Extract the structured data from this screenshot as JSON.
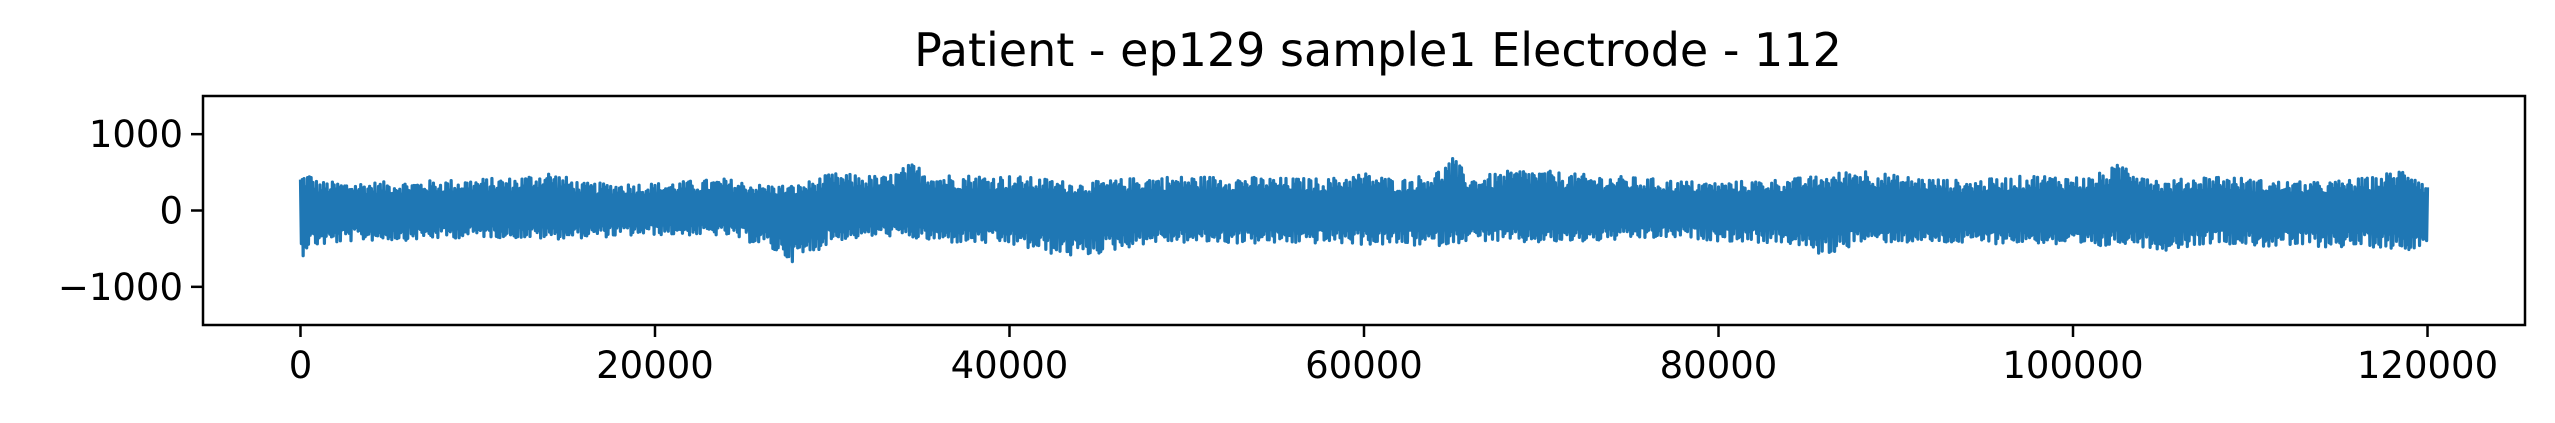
{
  "chart_data": {
    "type": "line",
    "title": "Patient - ep129 sample1 Electrode - 112",
    "xlabel": "",
    "ylabel": "",
    "xlim": [
      -5500,
      125500
    ],
    "ylim": [
      -1500,
      1500
    ],
    "x_ticks": [
      0,
      20000,
      40000,
      60000,
      80000,
      100000,
      120000
    ],
    "x_tick_labels": [
      "0",
      "20000",
      "40000",
      "60000",
      "80000",
      "100000",
      "120000"
    ],
    "y_ticks": [
      1000,
      0,
      -1000
    ],
    "y_tick_labels": [
      "1000",
      "0",
      "−1000"
    ],
    "grid": false,
    "legend": "none",
    "series": [
      {
        "color": "#1f77b4",
        "x_range": [
          0,
          120000
        ],
        "n_samples": 120000,
        "envelope": {
          "x": [
            0,
            500,
            1000,
            3000,
            6000,
            10000,
            12000,
            14000,
            16000,
            20000,
            24000,
            26000,
            28000,
            30000,
            33000,
            34500,
            36000,
            40000,
            42000,
            44000,
            48000,
            52000,
            55000,
            58000,
            60000,
            62000,
            64000,
            65000,
            66000,
            69000,
            72000,
            75000,
            78000,
            80000,
            84000,
            86000,
            88000,
            90000,
            94000,
            98000,
            101000,
            103000,
            105000,
            108000,
            111000,
            114000,
            117000,
            119000,
            120000
          ],
          "upper": [
            480,
            500,
            380,
            370,
            380,
            420,
            430,
            520,
            360,
            360,
            420,
            340,
            330,
            490,
            450,
            620,
            480,
            460,
            420,
            360,
            450,
            450,
            430,
            420,
            500,
            400,
            500,
            700,
            430,
            550,
            480,
            440,
            390,
            370,
            420,
            460,
            560,
            460,
            390,
            470,
            440,
            650,
            380,
            470,
            390,
            370,
            440,
            590,
            330
          ],
          "lower": [
            -650,
            -460,
            -470,
            -400,
            -390,
            -350,
            -360,
            -380,
            -360,
            -320,
            -330,
            -460,
            -700,
            -400,
            -330,
            -370,
            -420,
            -450,
            -560,
            -620,
            -420,
            -430,
            -440,
            -430,
            -450,
            -460,
            -470,
            -440,
            -390,
            -430,
            -420,
            -380,
            -360,
            -400,
            -440,
            -600,
            -420,
            -420,
            -440,
            -430,
            -520,
            -430,
            -530,
            -420,
            -480,
            -480,
            -480,
            -520,
            -410
          ]
        }
      }
    ]
  }
}
